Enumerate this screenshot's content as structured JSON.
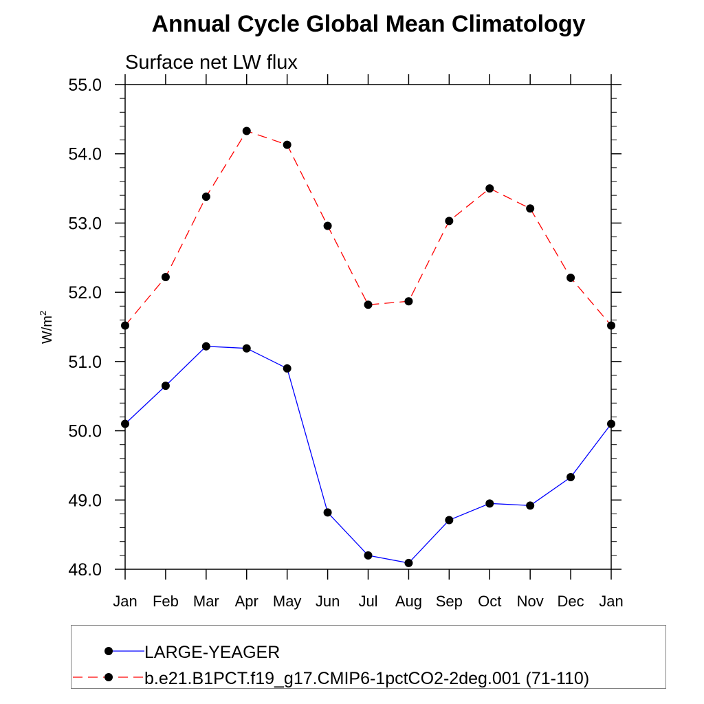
{
  "chart_data": {
    "type": "line",
    "title": "Annual Cycle Global Mean Climatology",
    "subtitle": "Surface net LW flux",
    "xlabel": "",
    "ylabel": "W/m",
    "ylabel_superscript": "2",
    "categories": [
      "Jan",
      "Feb",
      "Mar",
      "Apr",
      "May",
      "Jun",
      "Jul",
      "Aug",
      "Sep",
      "Oct",
      "Nov",
      "Dec",
      "Jan"
    ],
    "ylim": [
      48.0,
      55.0
    ],
    "yticks": [
      "48.0",
      "49.0",
      "50.0",
      "51.0",
      "52.0",
      "53.0",
      "54.0",
      "55.0"
    ],
    "grid": false,
    "legend_position": "bottom",
    "series": [
      {
        "name": "LARGE-YEAGER",
        "color": "#0000ff",
        "dash": "solid",
        "values": [
          50.1,
          50.65,
          51.22,
          51.19,
          50.9,
          48.82,
          48.2,
          48.09,
          48.71,
          48.95,
          48.92,
          49.33,
          50.1
        ]
      },
      {
        "name": "b.e21.B1PCT.f19_g17.CMIP6-1pctCO2-2deg.001 (71-110)",
        "color": "#ff0000",
        "dash": "dashed",
        "values": [
          51.52,
          52.22,
          53.38,
          54.33,
          54.13,
          52.96,
          51.82,
          51.87,
          53.03,
          53.5,
          53.21,
          52.21,
          51.52
        ]
      }
    ]
  }
}
